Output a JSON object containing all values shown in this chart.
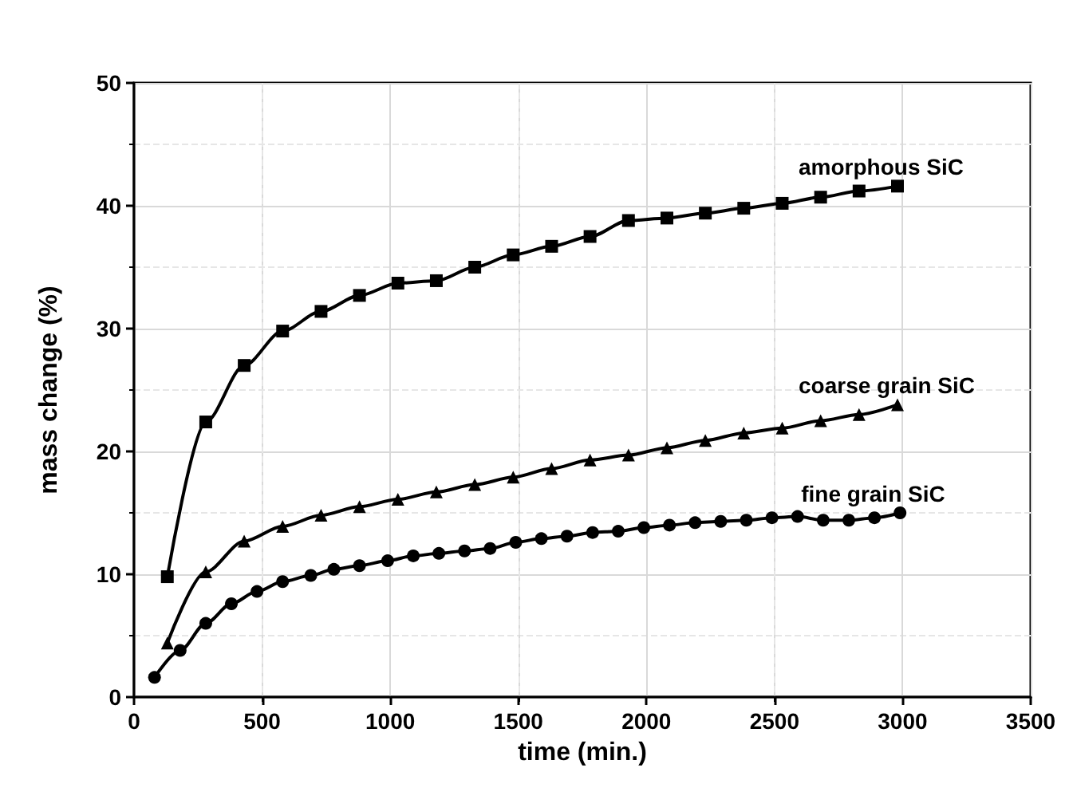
{
  "chart_data": {
    "type": "line",
    "xlabel": "time (min.)",
    "ylabel": "mass change (%)",
    "xlim": [
      0,
      3500
    ],
    "xticks": [
      0,
      500,
      1000,
      1500,
      2000,
      2500,
      3000,
      3500
    ],
    "ylim": [
      0,
      50
    ],
    "yticks": [
      0,
      10,
      20,
      30,
      40,
      50
    ],
    "grid": true,
    "legend": false,
    "line_style": "solid",
    "series": [
      {
        "name": "amorphous SiC",
        "color": "#000000",
        "marker": "square",
        "x": [
          130,
          280,
          430,
          580,
          730,
          880,
          1030,
          1180,
          1330,
          1480,
          1630,
          1780,
          1930,
          2080,
          2230,
          2380,
          2530,
          2680,
          2830,
          2980
        ],
        "values": [
          9.8,
          22.4,
          27.0,
          29.8,
          31.4,
          32.7,
          33.7,
          33.9,
          35.0,
          36.0,
          36.7,
          37.5,
          38.8,
          39.0,
          39.4,
          39.8,
          40.2,
          40.7,
          41.2,
          41.6
        ]
      },
      {
        "name": "coarse grain SiC",
        "color": "#000000",
        "marker": "triangle",
        "x": [
          130,
          280,
          430,
          580,
          730,
          880,
          1030,
          1180,
          1330,
          1480,
          1630,
          1780,
          1930,
          2080,
          2230,
          2380,
          2530,
          2680,
          2830,
          2980
        ],
        "values": [
          4.4,
          10.2,
          12.7,
          13.9,
          14.8,
          15.5,
          16.1,
          16.7,
          17.3,
          17.9,
          18.6,
          19.3,
          19.7,
          20.3,
          20.9,
          21.5,
          21.9,
          22.5,
          23.0,
          23.8
        ]
      },
      {
        "name": "fine grain SiC",
        "color": "#000000",
        "marker": "circle",
        "x": [
          80,
          180,
          280,
          380,
          480,
          580,
          690,
          780,
          880,
          990,
          1090,
          1190,
          1290,
          1390,
          1490,
          1590,
          1690,
          1790,
          1890,
          1990,
          2090,
          2190,
          2290,
          2390,
          2490,
          2590,
          2690,
          2790,
          2890,
          2990
        ],
        "values": [
          1.6,
          3.8,
          6.0,
          7.6,
          8.6,
          9.4,
          9.9,
          10.4,
          10.7,
          11.1,
          11.5,
          11.7,
          11.9,
          12.1,
          12.6,
          12.9,
          13.1,
          13.4,
          13.5,
          13.8,
          14.0,
          14.2,
          14.3,
          14.4,
          14.6,
          14.7,
          14.4,
          14.4,
          14.6,
          15.0
        ]
      }
    ]
  }
}
